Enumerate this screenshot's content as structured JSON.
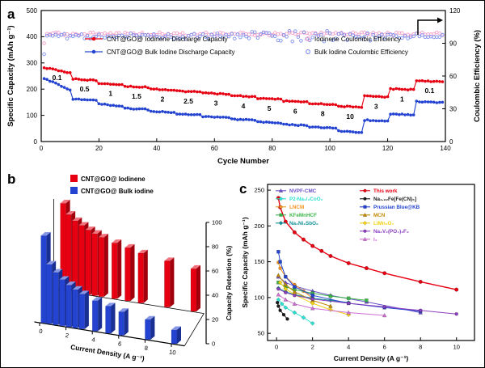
{
  "figure": {
    "panel_a_label": "a",
    "panel_b_label": "b",
    "panel_c_label": "c"
  },
  "icons": {
    "right_axis_arrow": "elbow-right-arrow"
  },
  "chart_data": [
    {
      "id": "a",
      "type": "line",
      "xlabel": "Cycle Number",
      "ylabel_left": "Specific Capacity (mAh g⁻¹)",
      "ylabel_right": "Coulombic Efficiency (%)",
      "xlim": [
        0,
        140
      ],
      "xticks": [
        0,
        20,
        40,
        60,
        80,
        100,
        120,
        140
      ],
      "ylim_left": [
        0,
        500
      ],
      "yticks_left": [
        0,
        100,
        200,
        300,
        400,
        500
      ],
      "ylim_right": [
        0,
        120
      ],
      "yticks_right": [
        0,
        30,
        60,
        90,
        120
      ],
      "colors": {
        "iodinene": "#e60012",
        "bulk": "#2343d0",
        "iodinene_ce": "#f5a0c8",
        "bulk_ce": "#7f90ee"
      },
      "legend": [
        {
          "label": "CNT@GO@ Iodinene Discharge Capacity",
          "type": "line-marker",
          "color": "#e60012"
        },
        {
          "label": "CNT@GO@ Bulk Iodine Discharge Capacity",
          "type": "line-marker",
          "color": "#2343d0"
        },
        {
          "label": "Iodinene Coulombic Efficiency",
          "type": "open-marker",
          "color": "#f5a0c8"
        },
        {
          "label": "Bulk Iodine Coulombic Efficiency",
          "type": "open-marker",
          "color": "#7f90ee"
        }
      ],
      "segments": [
        {
          "rate": "0.1",
          "cycles": 10,
          "iodinene": [
            282,
            262
          ],
          "bulk": [
            240,
            198
          ]
        },
        {
          "rate": "0.5",
          "cycles": 9,
          "iodinene": [
            239,
            233
          ],
          "bulk": [
            163,
            156
          ]
        },
        {
          "rate": "1",
          "cycles": 9,
          "iodinene": [
            223,
            218
          ],
          "bulk": [
            143,
            136
          ]
        },
        {
          "rate": "1.5",
          "cycles": 9,
          "iodinene": [
            211,
            207
          ],
          "bulk": [
            127,
            122
          ]
        },
        {
          "rate": "2",
          "cycles": 9,
          "iodinene": [
            201,
            197
          ],
          "bulk": [
            115,
            111
          ]
        },
        {
          "rate": "2.5",
          "cycles": 9,
          "iodinene": [
            193,
            189
          ],
          "bulk": [
            105,
            101
          ]
        },
        {
          "rate": "3",
          "cycles": 10,
          "iodinene": [
            185,
            181
          ],
          "bulk": [
            95,
            91
          ]
        },
        {
          "rate": "4",
          "cycles": 9,
          "iodinene": [
            175,
            171
          ],
          "bulk": [
            85,
            81
          ]
        },
        {
          "rate": "5",
          "cycles": 9,
          "iodinene": [
            165,
            161
          ],
          "bulk": [
            75,
            71
          ]
        },
        {
          "rate": "6",
          "cycles": 9,
          "iodinene": [
            155,
            151
          ],
          "bulk": [
            65,
            61
          ]
        },
        {
          "rate": "8",
          "cycles": 10,
          "iodinene": [
            145,
            141
          ],
          "bulk": [
            55,
            51
          ]
        },
        {
          "rate": "10",
          "cycles": 9,
          "iodinene": [
            135,
            131
          ],
          "bulk": [
            40,
            34
          ]
        },
        {
          "rate": "3",
          "cycles": 9,
          "iodinene": [
            173,
            170
          ],
          "bulk": [
            82,
            79
          ]
        },
        {
          "rate": "1",
          "cycles": 9,
          "iodinene": [
            201,
            198
          ],
          "bulk": [
            106,
            102
          ]
        },
        {
          "rate": "0.1",
          "cycles": 10,
          "iodinene": [
            233,
            228
          ],
          "bulk": [
            153,
            148
          ]
        }
      ],
      "coulombic_efficiency": {
        "iodinene_mean": 98.5,
        "bulk_mean": 96.5,
        "first_cycle": {
          "iodinene": 90,
          "bulk": 80
        }
      }
    },
    {
      "id": "b",
      "type": "bar3d",
      "xlabel": "Current Density (A g⁻¹)",
      "zlabel": "Capacity Retention (%)",
      "xticks": [
        0,
        2,
        4,
        6,
        8,
        10
      ],
      "zticks": [
        0,
        20,
        40,
        60,
        80,
        100
      ],
      "legend": [
        {
          "label": "CNT@GO@ Iodinene",
          "color": "#e60012"
        },
        {
          "label": "CNT@GO@ Bulk iodine",
          "color": "#2343d0"
        }
      ],
      "current_densities": [
        0.1,
        0.5,
        1,
        1.5,
        2,
        2.5,
        3,
        4,
        5,
        6,
        8,
        10
      ],
      "series": [
        {
          "name": "CNT@GO@ Iodinene",
          "color": "#e60012",
          "values": [
            100,
            88,
            82,
            78,
            74,
            71,
            68,
            64,
            61,
            57,
            53,
            49
          ]
        },
        {
          "name": "CNT@GO@ Bulk iodine",
          "color": "#2343d0",
          "values": [
            100,
            68,
            60,
            53,
            48,
            44,
            40,
            35,
            31,
            27,
            23,
            16
          ]
        }
      ]
    },
    {
      "id": "c",
      "type": "scatter-line",
      "xlabel": "Current Density (A g⁻¹)",
      "ylabel": "Specific Capacity (mAh g⁻¹)",
      "xlim": [
        -0.5,
        11
      ],
      "xticks": [
        0,
        2,
        4,
        6,
        8,
        10
      ],
      "ylim": [
        40,
        258
      ],
      "yticks": [
        50,
        100,
        150,
        200,
        250
      ],
      "legend_columns": [
        [
          0,
          1,
          2,
          3,
          4
        ],
        [
          5,
          6,
          7,
          8,
          9,
          10,
          11
        ]
      ],
      "series": [
        {
          "name": "NVPF-CMC",
          "color": "#6a4fc8",
          "marker": "triangle",
          "points": [
            [
              0.1,
              129
            ],
            [
              0.5,
              121
            ],
            [
              1,
              116
            ],
            [
              2,
              109
            ],
            [
              3,
              103
            ],
            [
              5,
              94
            ],
            [
              8,
              79
            ]
          ]
        },
        {
          "name": "P2-Na₂/₃CoO₂",
          "color": "#2ee0d2",
          "marker": "diamond",
          "points": [
            [
              0.1,
              97
            ],
            [
              0.3,
              91
            ],
            [
              0.5,
              86
            ],
            [
              1,
              79
            ],
            [
              1.5,
              72
            ],
            [
              2,
              64
            ]
          ]
        },
        {
          "name": "LNCM",
          "color": "#f79421",
          "marker": "circle",
          "points": [
            [
              0.1,
              149
            ],
            [
              0.2,
              141
            ],
            [
              0.5,
              129
            ],
            [
              1,
              118
            ],
            [
              1.5,
              109
            ],
            [
              2,
              99
            ]
          ]
        },
        {
          "name": "KFeMnHCF",
          "color": "#3bb54a",
          "marker": "square",
          "points": [
            [
              0.1,
              121
            ],
            [
              0.5,
              115
            ],
            [
              1,
              111
            ],
            [
              2,
              106
            ],
            [
              3,
              102
            ],
            [
              4,
              99
            ],
            [
              5,
              96
            ]
          ]
        },
        {
          "name": "Na₃Ni₂SbO₆",
          "color": "#0f8f96",
          "marker": "diamond",
          "points": [
            [
              0.1,
              113
            ],
            [
              0.5,
              108
            ],
            [
              1,
              104
            ],
            [
              2,
              99
            ],
            [
              3,
              96
            ],
            [
              4,
              93
            ]
          ]
        },
        {
          "name": "This work",
          "color": "#e60012",
          "marker": "circle",
          "highlight": true,
          "points": [
            [
              0.1,
              239
            ],
            [
              0.2,
              226
            ],
            [
              0.5,
              206
            ],
            [
              1,
              191
            ],
            [
              1.5,
              181
            ],
            [
              2,
              172
            ],
            [
              2.5,
              165
            ],
            [
              3,
              158
            ],
            [
              4,
              148
            ],
            [
              5,
              141
            ],
            [
              6,
              134
            ],
            [
              8,
              122
            ],
            [
              10,
              111
            ]
          ]
        },
        {
          "name": "Na₁.₉₂Fe[Fe(CN)₆]",
          "color": "#1a1a1a",
          "marker": "circle",
          "points": [
            [
              0.05,
              93
            ],
            [
              0.1,
              88
            ],
            [
              0.2,
              82
            ],
            [
              0.4,
              76
            ],
            [
              0.6,
              70
            ]
          ]
        },
        {
          "name": "Prussian Blue@KB",
          "color": "#2343d0",
          "marker": "square",
          "points": [
            [
              0.1,
              164
            ],
            [
              0.2,
              150
            ],
            [
              0.5,
              129
            ],
            [
              1,
              115
            ],
            [
              2,
              103
            ],
            [
              4,
              92
            ],
            [
              6,
              86
            ],
            [
              8,
              81
            ]
          ]
        },
        {
          "name": "MCN",
          "color": "#c08a00",
          "marker": "triangle",
          "points": [
            [
              0.1,
              131
            ],
            [
              0.5,
              118
            ],
            [
              1,
              108
            ],
            [
              2,
              96
            ],
            [
              3,
              88
            ]
          ]
        },
        {
          "name": "LiMn₂O₄",
          "color": "#f2d10e",
          "marker": "diamond",
          "points": [
            [
              0.2,
              121
            ],
            [
              0.5,
              112
            ],
            [
              1,
              104
            ],
            [
              2,
              92
            ],
            [
              3,
              83
            ],
            [
              4,
              76
            ]
          ]
        },
        {
          "name": "Na₃V₂(PO₄)₂F₃",
          "color": "#8a3fbf",
          "marker": "circle",
          "points": [
            [
              0.1,
              112
            ],
            [
              0.5,
              107
            ],
            [
              1,
              103
            ],
            [
              2,
              98
            ],
            [
              4,
              92
            ],
            [
              6,
              87
            ],
            [
              8,
              82
            ],
            [
              10,
              77
            ]
          ]
        },
        {
          "name": "I₂",
          "color": "#cf6fd4",
          "marker": "triangle",
          "points": [
            [
              0.1,
              104
            ],
            [
              0.5,
              97
            ],
            [
              1,
              91
            ],
            [
              2,
              85
            ],
            [
              4,
              79
            ],
            [
              6,
              75
            ]
          ]
        }
      ]
    }
  ]
}
